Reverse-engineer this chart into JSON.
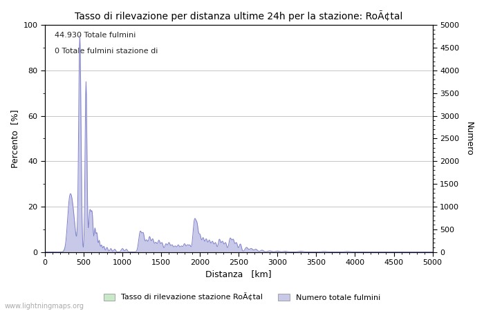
{
  "title": "Tasso di rilevazione per distanza ultime 24h per la stazione: RoÃ¢tal",
  "xlabel": "Distanza   [km]",
  "ylabel_left": "Percento  [%]",
  "ylabel_right": "Numero",
  "annotation_line1": "44.930 Totale fulmini",
  "annotation_line2": "0 Totale fulmini stazione di",
  "xlim": [
    0,
    5000
  ],
  "ylim_left": [
    0,
    100
  ],
  "ylim_right": [
    0,
    5000
  ],
  "xticks": [
    0,
    500,
    1000,
    1500,
    2000,
    2500,
    3000,
    3500,
    4000,
    4500,
    5000
  ],
  "yticks_left": [
    0,
    20,
    40,
    60,
    80,
    100
  ],
  "yticks_right": [
    0,
    500,
    1000,
    1500,
    2000,
    2500,
    3000,
    3500,
    4000,
    4500,
    5000
  ],
  "legend_label_green": "Tasso di rilevazione stazione RoÃ¢tal",
  "legend_label_blue": "Numero totale fulmini",
  "bg_color": "#ffffff",
  "grid_color": "#bbbbbb",
  "line_color": "#8080cc",
  "fill_color_blue": "#c8c8e8",
  "fill_color_green": "#c8e8c8",
  "watermark": "www.lightningmaps.org",
  "watermark_color": "#aaaaaa",
  "figsize": [
    7.0,
    4.5
  ],
  "dpi": 100
}
